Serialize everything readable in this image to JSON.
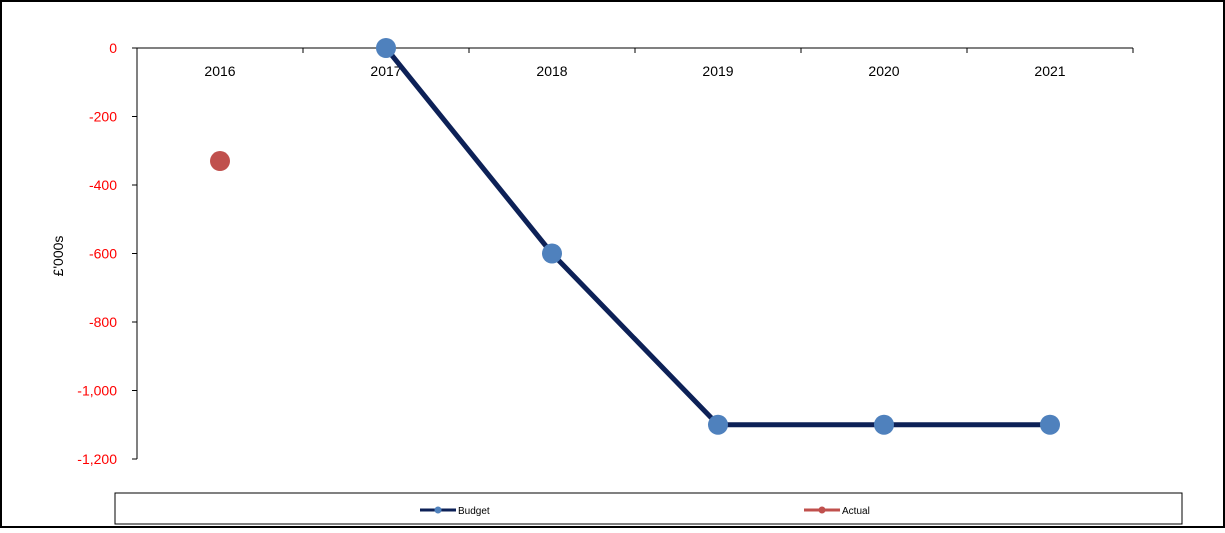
{
  "chart_data": {
    "type": "line",
    "categories": [
      "2016",
      "2017",
      "2018",
      "2019",
      "2020",
      "2021"
    ],
    "series": [
      {
        "name": "Budget",
        "values": [
          null,
          0,
          -600,
          -1100,
          -1100,
          -1100
        ]
      },
      {
        "name": "Actual",
        "values": [
          -330,
          null,
          null,
          null,
          null,
          null
        ]
      }
    ],
    "ylabel": "£'000s",
    "ylim": [
      -1200,
      0
    ],
    "yticks": [
      0,
      -200,
      -400,
      -600,
      -800,
      -1000,
      -1200
    ],
    "ytick_labels": [
      "0",
      "-200",
      "-400",
      "-600",
      "-800",
      "-1,000",
      "-1,200"
    ],
    "xaxis_position": "top",
    "grid": false,
    "legend_position": "bottom",
    "colors": {
      "budget_line": "#0d2157",
      "budget_marker": "#4f81bd",
      "actual_line": "#c0504d",
      "actual_marker": "#c0504d",
      "ytick_label": "#ff0000"
    }
  }
}
